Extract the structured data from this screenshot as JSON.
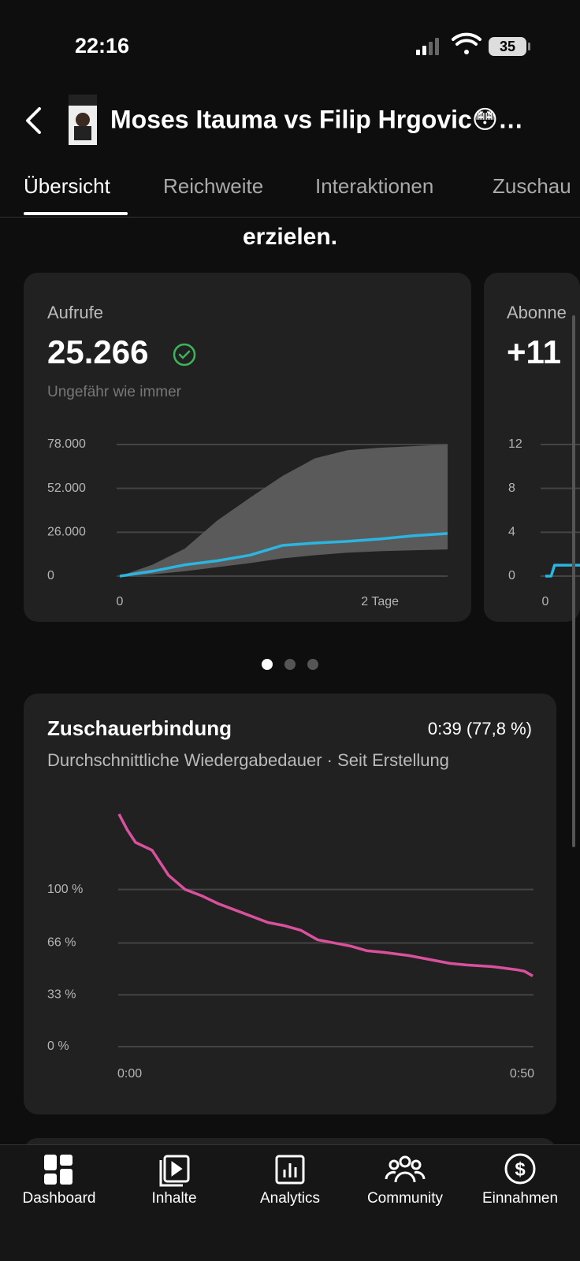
{
  "status": {
    "time": "22:16",
    "battery": "35"
  },
  "header": {
    "title": "Moses Itauma vs Filip Hrgovic😳…"
  },
  "tabs": [
    "Übersicht",
    "Reichweite",
    "Interaktionen",
    "Zuschau"
  ],
  "intro": "erzielen.",
  "cards": [
    {
      "label": "Aufrufe",
      "value": "25.266",
      "note": "Ungefähr wie immer",
      "chart": {
        "type": "line",
        "x": [
          0,
          0.25,
          0.5,
          0.75,
          1,
          1.25,
          1.5,
          1.75,
          2,
          2.25,
          2.52
        ],
        "series": [
          {
            "color": "#2bb5e0",
            "values": [
              0,
              2900,
              6700,
              9100,
              12400,
              18200,
              19600,
              20600,
              22000,
              23900,
              25300
            ]
          }
        ],
        "band": {
          "color": "#5a5a5a",
          "low": [
            0,
            1000,
            2900,
            5300,
            7700,
            10500,
            12400,
            13900,
            14800,
            15300,
            15800
          ],
          "high": [
            0,
            6700,
            16300,
            33000,
            46400,
            59300,
            69800,
            74600,
            76100,
            77000,
            78000
          ]
        },
        "xlim": [
          0,
          2.52
        ],
        "xticks": [
          0,
          {
            "value": 2,
            "label": "2 Tage"
          }
        ],
        "ylim": [
          0,
          78000
        ],
        "yticks": [
          {
            "value": 78000,
            "label": "78.000"
          },
          {
            "value": 52000,
            "label": "52.000"
          },
          {
            "value": 26000,
            "label": "26.000"
          },
          0
        ],
        "grid": true
      }
    },
    {
      "label": "Abonne",
      "value": "+11",
      "chart": {
        "type": "line",
        "x": [
          0,
          0.05,
          0.08,
          0.3
        ],
        "series": [
          {
            "color": "#2bb5e0",
            "values": [
              0,
              0,
              1,
              1
            ]
          }
        ],
        "xlim": [
          0,
          0.3
        ],
        "xticks": [
          0
        ],
        "ylim": [
          0,
          12
        ],
        "yticks": [
          12,
          8,
          4,
          0
        ],
        "grid": true
      }
    }
  ],
  "retention": {
    "title": "Zuschauerbindung",
    "value": "0:39 (77,8 %)",
    "subtitle": "Durchschnittliche Wiedergabedauer · Seit Erstellung",
    "chart": {
      "type": "line",
      "x": [
        0,
        1,
        2,
        4,
        5,
        6,
        8,
        10,
        12,
        15,
        18,
        20,
        22,
        24,
        26,
        28,
        30,
        32,
        35,
        38,
        40,
        42,
        45,
        48,
        49,
        50
      ],
      "series": [
        {
          "color": "#d9519c",
          "values": [
            148,
            138,
            130,
            125,
            117,
            109,
            100,
            96,
            91,
            85,
            79,
            77,
            74,
            68,
            66,
            64,
            61,
            60,
            58,
            55,
            53,
            52,
            51,
            49,
            48,
            45
          ]
        }
      ],
      "xlim": [
        0,
        50
      ],
      "xticks": [
        {
          "value": 0,
          "label": "0:00"
        },
        {
          "value": 50,
          "label": "0:50"
        }
      ],
      "ylim": [
        0,
        150
      ],
      "yticks": [
        {
          "value": 100,
          "label": "100 %"
        },
        {
          "value": 66,
          "label": "66 %"
        },
        {
          "value": 33,
          "label": "33 %"
        },
        {
          "value": 0,
          "label": "0 %"
        }
      ],
      "grid": true
    }
  },
  "nav": [
    "Dashboard",
    "Inhalte",
    "Analytics",
    "Community",
    "Einnahmen"
  ]
}
